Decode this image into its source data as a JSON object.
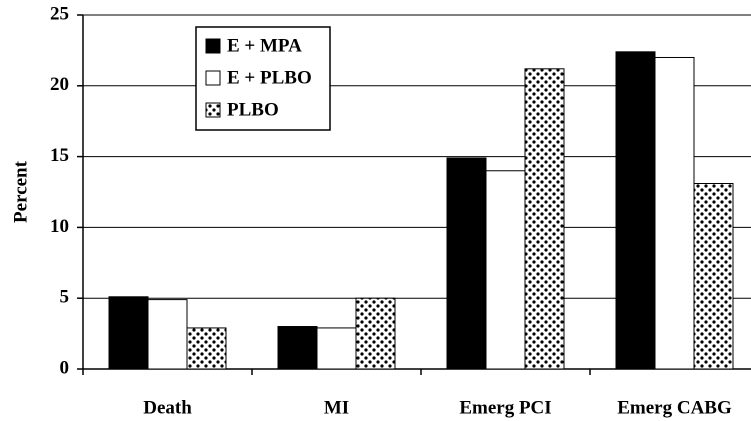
{
  "chart_data": {
    "type": "bar",
    "y_label": "Percent",
    "categories": [
      "Death",
      "MI",
      "Emerg PCI",
      "Emerg CABG"
    ],
    "series": [
      {
        "name": "E + MPA",
        "color": "#000000",
        "values": [
          5.1,
          3.0,
          14.9,
          22.4
        ]
      },
      {
        "name": "E + PLBO",
        "color": "#ffffff",
        "values": [
          4.9,
          2.9,
          14.0,
          22.0
        ]
      },
      {
        "name": "PLBO",
        "color": "#ffffff",
        "pattern": "dots",
        "values": [
          2.9,
          5.0,
          21.2,
          13.1
        ]
      }
    ],
    "ylim": [
      0,
      25
    ],
    "yticks": [
      0,
      5,
      10,
      15,
      20,
      25
    ],
    "grid": true,
    "legend": "upper left"
  }
}
